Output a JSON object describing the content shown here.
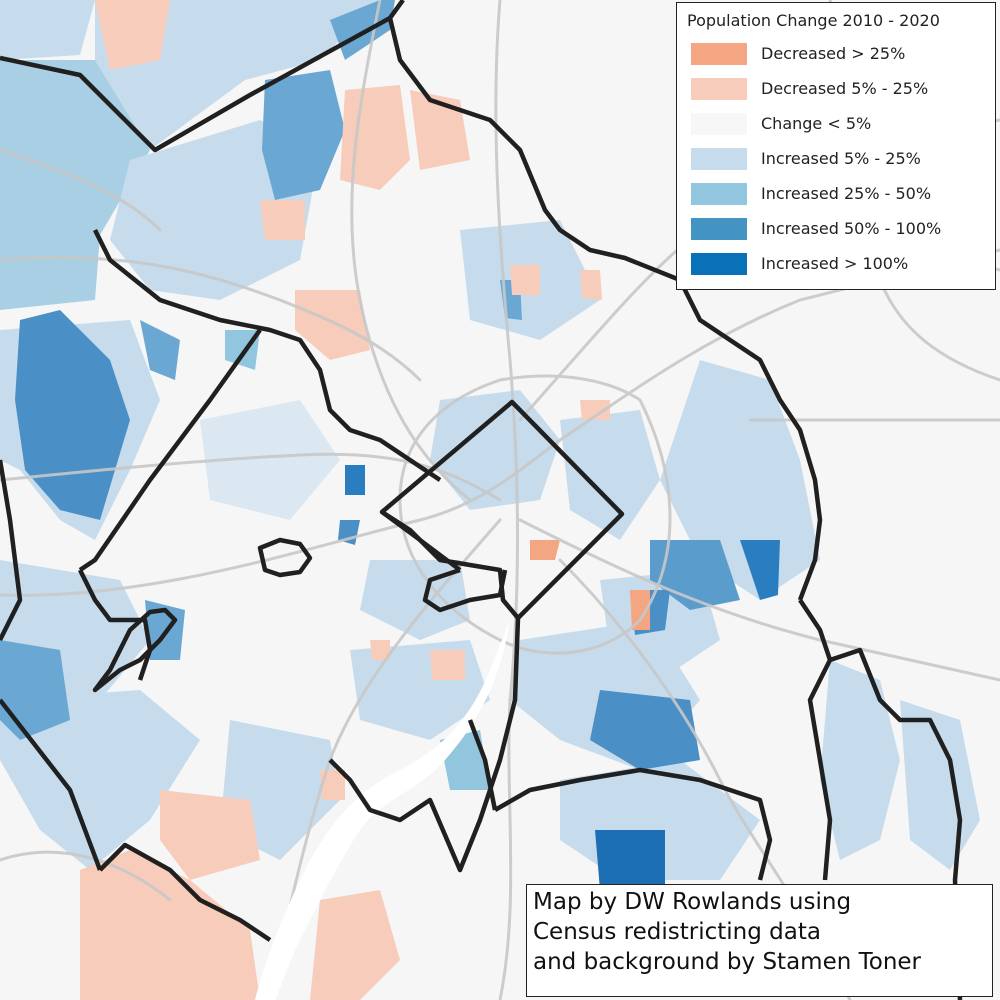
{
  "legend": {
    "title": "Population Change 2010 - 2020",
    "items": [
      {
        "label": "Decreased > 25%",
        "color": "#f4a582"
      },
      {
        "label": "Decreased 5% - 25%",
        "color": "#f7ccbb"
      },
      {
        "label": "Change < 5%",
        "color": "#f7f7f7"
      },
      {
        "label": "Increased 5% - 25%",
        "color": "#c6dcec"
      },
      {
        "label": "Increased 25% - 50%",
        "color": "#92c5de"
      },
      {
        "label": "Increased 50% - 100%",
        "color": "#4393c3"
      },
      {
        "label": "Increased > 100%",
        "color": "#0871b8"
      }
    ]
  },
  "credit": {
    "line1": "Map by DW Rowlands using",
    "line2": "Census redistricting data",
    "line3": "and background by Stamen Toner"
  }
}
